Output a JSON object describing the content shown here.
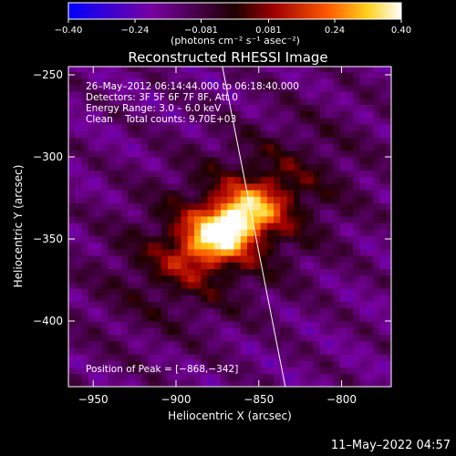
{
  "chart_data": {
    "type": "heatmap",
    "title": "Reconstructed RHESSI Image",
    "xlabel": "Heliocentric X (arcsec)",
    "ylabel": "Heliocentric Y (arcsec)",
    "xlim": [
      -965,
      -770
    ],
    "ylim": [
      -440,
      -245
    ],
    "x_ticks": [
      -950,
      -900,
      -850,
      -800
    ],
    "y_ticks": [
      -250,
      -300,
      -350,
      -400
    ],
    "x_tick_labels": [
      "−950",
      "−900",
      "−850",
      "−800"
    ],
    "y_tick_labels": [
      "−250",
      "−300",
      "−350",
      "−400"
    ],
    "colorbar": {
      "min": -0.4,
      "max": 0.4,
      "tick_values": [
        -0.4,
        -0.24,
        -0.081,
        0.081,
        0.24,
        0.4
      ],
      "tick_labels": [
        "−0.40",
        "−0.24",
        "−0.081",
        "0.081",
        "0.24",
        "0.40"
      ],
      "units_label": "(photons cm⁻² s⁻¹ asec⁻²)"
    },
    "annotations": [
      "26–May–2012 06:14:44.000 to 06:18:40.000",
      "Detectors: 3F 5F 6F 7F 8F, Att 0",
      "Energy Range: 3.0 – 6.0 keV",
      "Clean    Total counts: 9.70E+03"
    ],
    "peak": {
      "label": "Position of Peak = [−868,−342]",
      "x": -868,
      "y": -342,
      "value": 0.4
    },
    "background_level": -0.15,
    "grid": false,
    "limb_line": [
      [
        -872,
        -245
      ],
      [
        -834,
        -440
      ]
    ]
  },
  "footer_timestamp": "11–May–2022 04:57"
}
